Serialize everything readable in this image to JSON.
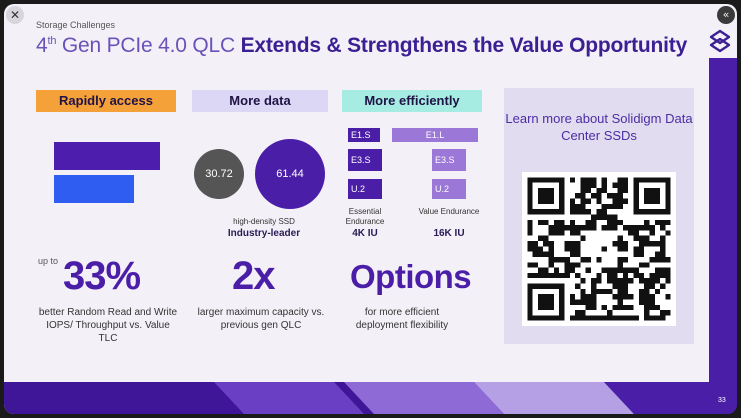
{
  "controls": {
    "close_glyph": "✕",
    "nav_glyph": "«"
  },
  "header": {
    "eyebrow": "Storage Challenges",
    "title_prefix": "4",
    "title_sup": "th",
    "title_light": " Gen PCIe 4.0 QLC ",
    "title_bold": "Extends & Strengthens the Value Opportunity"
  },
  "columns": {
    "access": {
      "pill": "Rapidly access",
      "up_to": "up to",
      "big": "33%",
      "desc": "better Random Read and Write IOPS/ Throughput vs. Value TLC"
    },
    "data": {
      "pill": "More data",
      "small_value": "30.72",
      "large_value": "61.44",
      "caption": "high-density SSD",
      "caption_bold": "Industry-leader",
      "big": "2x",
      "desc": "larger maximum capacity vs. previous gen QLC"
    },
    "efficiency": {
      "pill": "More efficiently",
      "forms_essential": [
        "E1.S",
        "E3.S",
        "U.2"
      ],
      "forms_value": [
        "E1.L",
        "E3.S",
        "U.2"
      ],
      "essential_label": "Essential Endurance",
      "value_label": "Value Endurance",
      "essential_iu": "4K IU",
      "value_iu": "16K IU",
      "big": "Options",
      "desc": "for more efficient deployment flexibility"
    }
  },
  "card": {
    "title": "Learn more about Solidigm Data Center SSDs"
  },
  "page_number": "33",
  "colors": {
    "purple": "#4b1ea8",
    "blue": "#2f5df1",
    "orange": "#f5a13a",
    "lavender": "#dcd7f5",
    "teal": "#a7ece3"
  }
}
